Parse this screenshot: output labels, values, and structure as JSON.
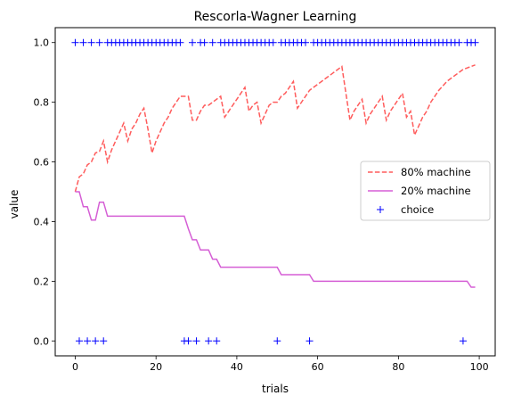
{
  "chart_data": {
    "type": "line",
    "title": "Rescorla-Wagner Learning",
    "xlabel": "trials",
    "ylabel": "value",
    "xlim": [
      -4.95,
      103.95
    ],
    "ylim": [
      -0.05,
      1.05
    ],
    "xticks": [
      0,
      20,
      40,
      60,
      80,
      100
    ],
    "xtick_labels": [
      "0",
      "20",
      "40",
      "60",
      "80",
      "100"
    ],
    "yticks": [
      0.0,
      0.2,
      0.4,
      0.6,
      0.8,
      1.0
    ],
    "ytick_labels": [
      "0.0",
      "0.2",
      "0.4",
      "0.6",
      "0.8",
      "1.0"
    ],
    "grid": false,
    "legend_position": "center-right",
    "x": [
      0,
      1,
      2,
      3,
      4,
      5,
      6,
      7,
      8,
      9,
      10,
      11,
      12,
      13,
      14,
      15,
      16,
      17,
      18,
      19,
      20,
      21,
      22,
      23,
      24,
      25,
      26,
      27,
      28,
      29,
      30,
      31,
      32,
      33,
      34,
      35,
      36,
      37,
      38,
      39,
      40,
      41,
      42,
      43,
      44,
      45,
      46,
      47,
      48,
      49,
      50,
      51,
      52,
      53,
      54,
      55,
      56,
      57,
      58,
      59,
      60,
      61,
      62,
      63,
      64,
      65,
      66,
      67,
      68,
      69,
      70,
      71,
      72,
      73,
      74,
      75,
      76,
      77,
      78,
      79,
      80,
      81,
      82,
      83,
      84,
      85,
      86,
      87,
      88,
      89,
      90,
      91,
      92,
      93,
      94,
      95,
      96,
      97,
      98,
      99
    ],
    "series": [
      {
        "name": "80% machine",
        "style": "dashed",
        "color": "#ff5c5c",
        "values": [
          0.5,
          0.55,
          0.56,
          0.59,
          0.6,
          0.63,
          0.635,
          0.67,
          0.6,
          0.64,
          0.67,
          0.7,
          0.73,
          0.67,
          0.71,
          0.73,
          0.76,
          0.78,
          0.71,
          0.63,
          0.67,
          0.7,
          0.73,
          0.75,
          0.78,
          0.8,
          0.82,
          0.82,
          0.82,
          0.74,
          0.74,
          0.77,
          0.79,
          0.79,
          0.8,
          0.81,
          0.82,
          0.75,
          0.77,
          0.79,
          0.81,
          0.83,
          0.85,
          0.77,
          0.79,
          0.8,
          0.73,
          0.76,
          0.79,
          0.8,
          0.8,
          0.82,
          0.83,
          0.85,
          0.87,
          0.78,
          0.8,
          0.82,
          0.84,
          0.85,
          0.86,
          0.87,
          0.88,
          0.89,
          0.9,
          0.91,
          0.92,
          0.83,
          0.74,
          0.77,
          0.79,
          0.81,
          0.73,
          0.76,
          0.78,
          0.8,
          0.82,
          0.74,
          0.77,
          0.79,
          0.81,
          0.83,
          0.75,
          0.77,
          0.69,
          0.72,
          0.75,
          0.77,
          0.8,
          0.82,
          0.84,
          0.855,
          0.87,
          0.88,
          0.89,
          0.9,
          0.91,
          0.915,
          0.92,
          0.925
        ]
      },
      {
        "name": "20% machine",
        "style": "solid",
        "color": "#d55fd5",
        "values": [
          0.5,
          0.5,
          0.45,
          0.45,
          0.405,
          0.405,
          0.465,
          0.465,
          0.418,
          0.418,
          0.418,
          0.418,
          0.418,
          0.418,
          0.418,
          0.418,
          0.418,
          0.418,
          0.418,
          0.418,
          0.418,
          0.418,
          0.418,
          0.418,
          0.418,
          0.418,
          0.418,
          0.418,
          0.376,
          0.339,
          0.339,
          0.305,
          0.305,
          0.305,
          0.274,
          0.274,
          0.247,
          0.247,
          0.247,
          0.247,
          0.247,
          0.247,
          0.247,
          0.247,
          0.247,
          0.247,
          0.247,
          0.247,
          0.247,
          0.247,
          0.247,
          0.222,
          0.222,
          0.222,
          0.222,
          0.222,
          0.222,
          0.222,
          0.222,
          0.2,
          0.2,
          0.2,
          0.2,
          0.2,
          0.2,
          0.2,
          0.2,
          0.2,
          0.2,
          0.2,
          0.2,
          0.2,
          0.2,
          0.2,
          0.2,
          0.2,
          0.2,
          0.2,
          0.2,
          0.2,
          0.2,
          0.2,
          0.2,
          0.2,
          0.2,
          0.2,
          0.2,
          0.2,
          0.2,
          0.2,
          0.2,
          0.2,
          0.2,
          0.2,
          0.2,
          0.2,
          0.2,
          0.2,
          0.18,
          0.18
        ]
      },
      {
        "name": "choice",
        "style": "markers",
        "marker": "+",
        "color": "#0000ff",
        "values": [
          1,
          0,
          1,
          0,
          1,
          0,
          1,
          0,
          1,
          1,
          1,
          1,
          1,
          1,
          1,
          1,
          1,
          1,
          1,
          1,
          1,
          1,
          1,
          1,
          1,
          1,
          1,
          0,
          0,
          1,
          0,
          1,
          1,
          0,
          1,
          0,
          1,
          1,
          1,
          1,
          1,
          1,
          1,
          1,
          1,
          1,
          1,
          1,
          1,
          1,
          0,
          1,
          1,
          1,
          1,
          1,
          1,
          1,
          0,
          1,
          1,
          1,
          1,
          1,
          1,
          1,
          1,
          1,
          1,
          1,
          1,
          1,
          1,
          1,
          1,
          1,
          1,
          1,
          1,
          1,
          1,
          1,
          1,
          1,
          1,
          1,
          1,
          1,
          1,
          1,
          1,
          1,
          1,
          1,
          1,
          1,
          0,
          1,
          1,
          1
        ]
      }
    ]
  }
}
